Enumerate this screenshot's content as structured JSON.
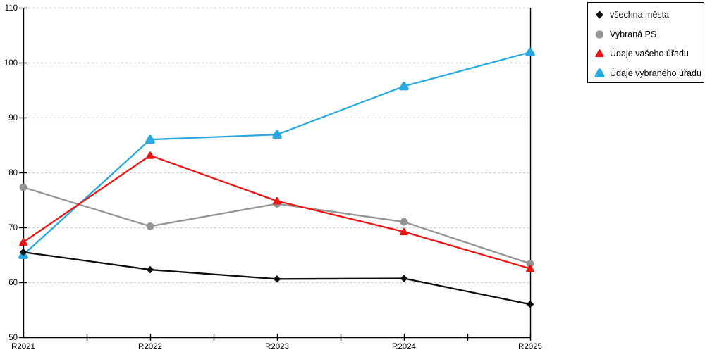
{
  "chart_data": {
    "type": "line",
    "title": "",
    "xlabel": "",
    "ylabel": "",
    "categories": [
      "R2021",
      "R2022",
      "R2023",
      "R2024",
      "R2025"
    ],
    "series": [
      {
        "name": "všechna města",
        "marker": "diamond",
        "color": "#0d0d0d",
        "values": [
          65.5,
          62.3,
          60.6,
          60.7,
          56.0
        ]
      },
      {
        "name": "Vybraná PS",
        "marker": "circle",
        "color": "#949494",
        "values": [
          77.3,
          70.2,
          74.3,
          71.0,
          63.4
        ]
      },
      {
        "name": "Údaje vašeho úřadu",
        "marker": "triangle",
        "color": "#ee1414",
        "values": [
          67.3,
          83.1,
          74.8,
          69.2,
          62.5
        ]
      },
      {
        "name": "Údaje vybraného úřadu",
        "marker": "triangle-rounded",
        "color": "#29a9e1",
        "values": [
          65.0,
          86.0,
          86.9,
          95.7,
          101.9
        ]
      }
    ],
    "ylim": [
      50,
      110
    ],
    "yticks": [
      50,
      60,
      70,
      80,
      90,
      100,
      110
    ],
    "grid": "horizontal-dashed",
    "legend_position": "top-right",
    "colors": {
      "grid": "#c8c8c8",
      "axis": "#000000",
      "background": "#ffffff"
    },
    "draw_order": [
      1,
      3,
      2,
      0
    ]
  }
}
